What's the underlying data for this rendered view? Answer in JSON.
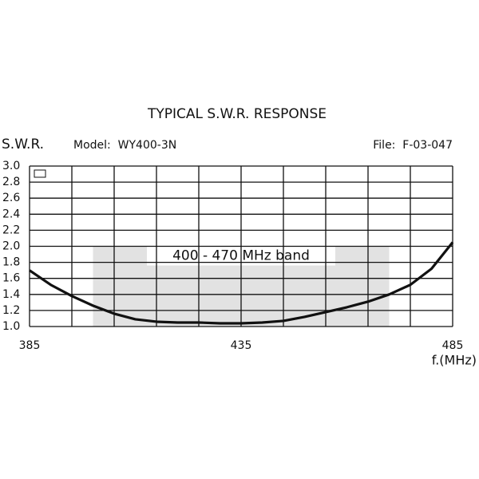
{
  "chart_data": {
    "type": "line",
    "title": "TYPICAL S.W.R. RESPONSE",
    "y_label": "S.W.R.",
    "x_label": "f.(MHz)",
    "model": "Model:  WY400-3N",
    "file": "File:  F-03-047",
    "annotation": "400 - 470 MHz band",
    "band": {
      "x": [
        400,
        470
      ],
      "y": [
        1,
        2
      ]
    },
    "x": [
      385,
      390,
      395,
      400,
      405,
      410,
      415,
      420,
      425,
      430,
      435,
      440,
      445,
      450,
      455,
      460,
      465,
      470,
      475,
      480,
      485
    ],
    "series": [
      {
        "color": "#111111",
        "values": [
          1.7,
          1.52,
          1.38,
          1.26,
          1.16,
          1.09,
          1.06,
          1.05,
          1.05,
          1.04,
          1.04,
          1.05,
          1.07,
          1.12,
          1.18,
          1.24,
          1.31,
          1.4,
          1.52,
          1.72,
          2.05
        ]
      }
    ],
    "xlim": [
      385,
      485
    ],
    "xticks": [
      385,
      {
        "value": 395,
        "label": null
      },
      {
        "value": 405,
        "label": null
      },
      {
        "value": 415,
        "label": null
      },
      {
        "value": 425,
        "label": null
      },
      435,
      {
        "value": 445,
        "label": null
      },
      {
        "value": 455,
        "label": null
      },
      {
        "value": 465,
        "label": null
      },
      {
        "value": 475,
        "label": null
      },
      485
    ],
    "ylim": [
      1,
      3
    ],
    "yticks": [
      {
        "value": 1,
        "label": "1.0"
      },
      1.2,
      1.4,
      1.6,
      1.8,
      {
        "value": 2,
        "label": "2.0"
      },
      2.2,
      2.4,
      2.6,
      2.8,
      {
        "value": 3,
        "label": "3.0"
      }
    ],
    "grid": true
  }
}
